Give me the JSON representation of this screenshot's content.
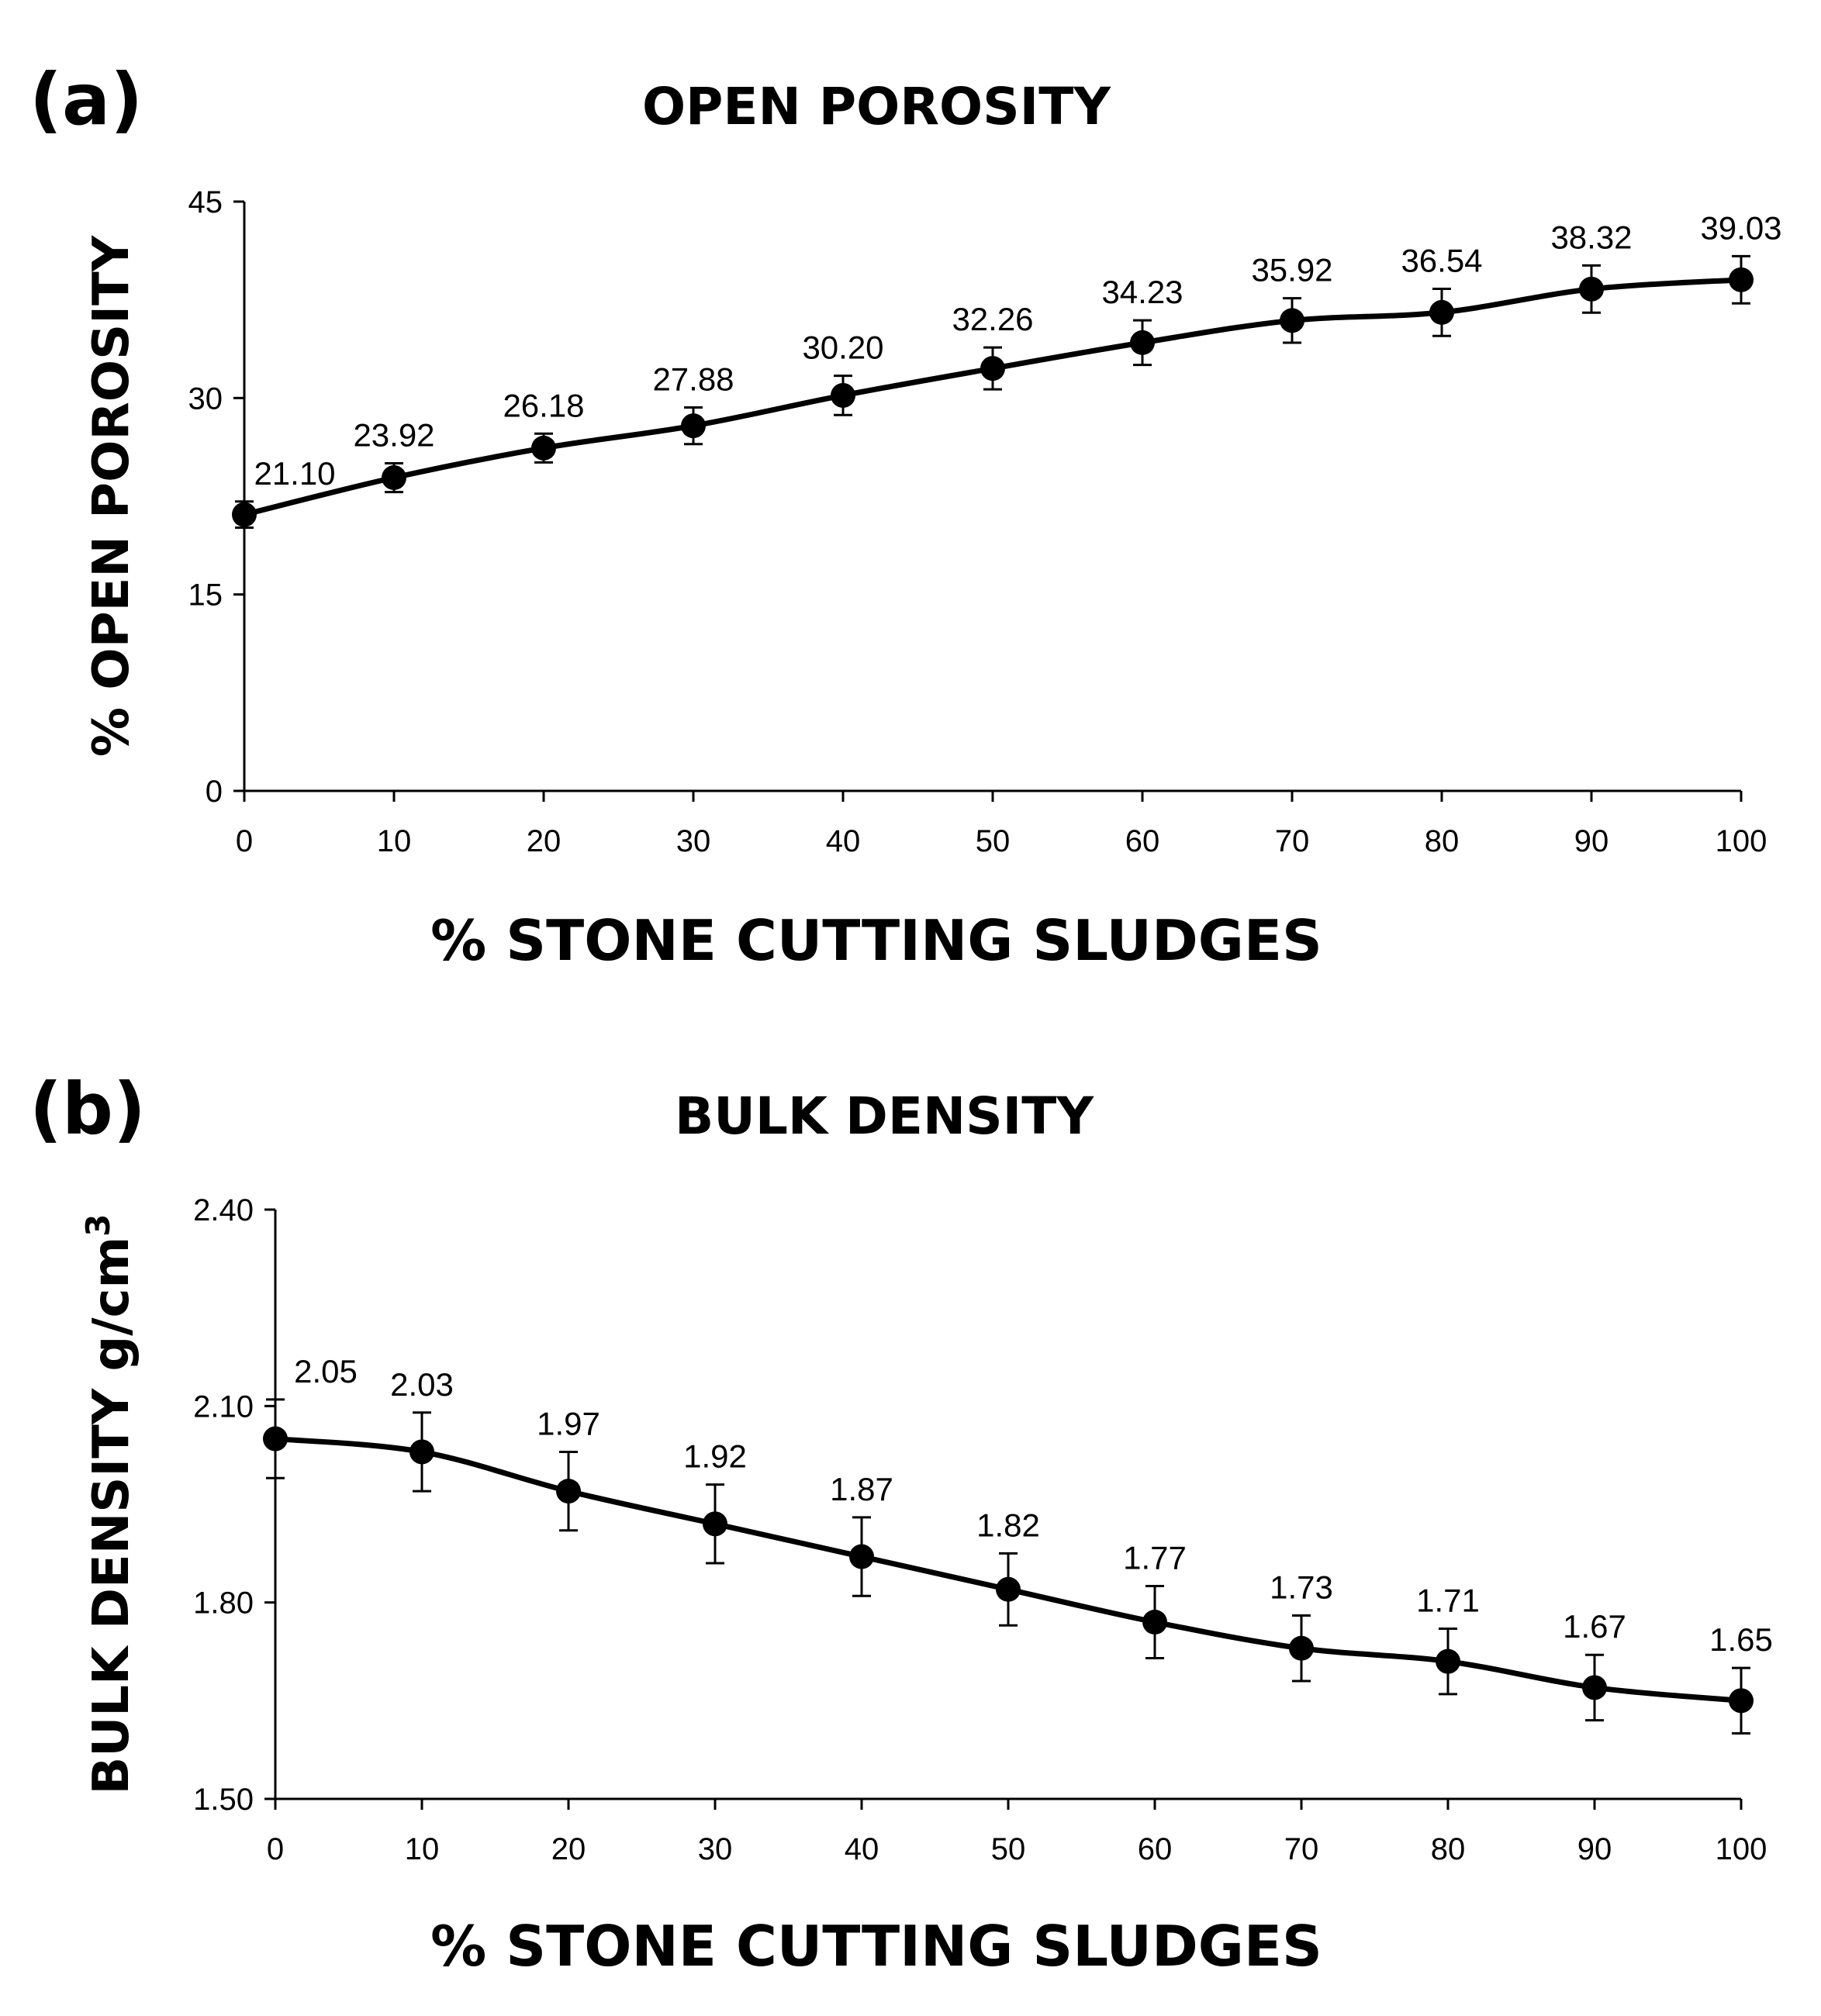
{
  "chart_data": [
    {
      "type": "line",
      "panel_label": "(a)",
      "title": "OPEN POROSITY",
      "xlabel": "% STONE CUTTING SLUDGES",
      "ylabel": "% OPEN POROSITY",
      "x": [
        0,
        10,
        20,
        30,
        40,
        50,
        60,
        70,
        80,
        90,
        100
      ],
      "values": [
        21.1,
        23.92,
        26.18,
        27.88,
        30.2,
        32.26,
        34.23,
        35.92,
        36.54,
        38.32,
        39.03
      ],
      "value_labels": [
        "21.10",
        "23.92",
        "26.18",
        "27.88",
        "30.20",
        "32.26",
        "34.23",
        "35.92",
        "36.54",
        "38.32",
        "39.03"
      ],
      "error": [
        1.0,
        1.1,
        1.1,
        1.4,
        1.5,
        1.6,
        1.7,
        1.7,
        1.8,
        1.8,
        1.8
      ],
      "xlim": [
        0,
        100
      ],
      "ylim": [
        0,
        45
      ],
      "xticks": [
        "0",
        "10",
        "20",
        "30",
        "40",
        "50",
        "60",
        "70",
        "80",
        "90",
        "100"
      ],
      "yticks": [
        "0",
        "15",
        "30",
        "45"
      ],
      "ytick_values": [
        0,
        15,
        30,
        45
      ],
      "grid": false
    },
    {
      "type": "line",
      "panel_label": "(b)",
      "title": "BULK DENSITY",
      "xlabel": "% STONE CUTTING SLUDGES",
      "ylabel": "BULK DENSITY  g/cm",
      "ylabel_superscript": "3",
      "x": [
        0,
        10,
        20,
        30,
        40,
        50,
        60,
        70,
        80,
        90,
        100
      ],
      "values": [
        2.05,
        2.03,
        1.97,
        1.92,
        1.87,
        1.82,
        1.77,
        1.73,
        1.71,
        1.67,
        1.65
      ],
      "value_labels": [
        "2.05",
        "2.03",
        "1.97",
        "1.92",
        "1.87",
        "1.82",
        "1.77",
        "1.73",
        "1.71",
        "1.67",
        "1.65"
      ],
      "error": [
        0.06,
        0.06,
        0.06,
        0.06,
        0.06,
        0.055,
        0.055,
        0.05,
        0.05,
        0.05,
        0.05
      ],
      "xlim": [
        0,
        100
      ],
      "ylim": [
        1.5,
        2.4
      ],
      "xticks": [
        "0",
        "10",
        "20",
        "30",
        "40",
        "50",
        "60",
        "70",
        "80",
        "90",
        "100"
      ],
      "yticks": [
        "1.50",
        "1.80",
        "2.10",
        "2.40"
      ],
      "ytick_values": [
        1.5,
        1.8,
        2.1,
        2.4
      ],
      "grid": false
    }
  ]
}
